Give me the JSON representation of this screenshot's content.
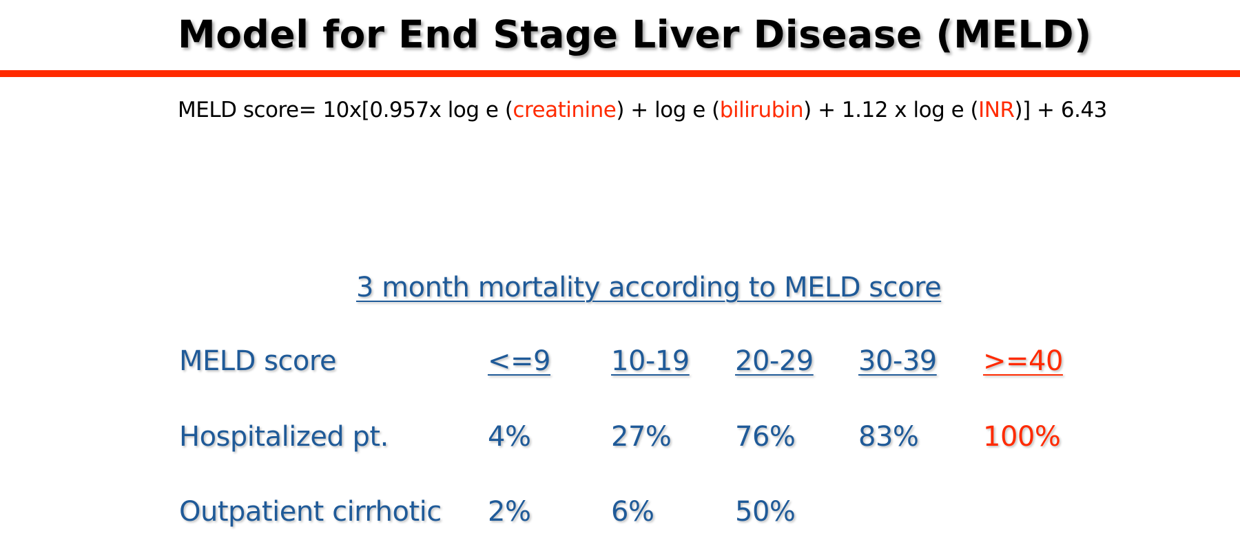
{
  "title": "Model for End Stage Liver Disease (MELD)",
  "formula": {
    "p1": "MELD score= 10x[0.957x log e (",
    "creatinine": "creatinine",
    "p2": ") + log e (",
    "bilirubin": "bilirubin",
    "p3": ") + 1.12 x log e (",
    "inr": "INR",
    "p4": ")] + 6.43"
  },
  "subtitle": "3 month mortality according to MELD score",
  "table": {
    "header": [
      "MELD score",
      "<=9",
      "10-19",
      "20-29",
      "30-39",
      ">=40"
    ],
    "rows": [
      [
        "Hospitalized pt.",
        "4%",
        "27%",
        "76%",
        "83%",
        "100%"
      ],
      [
        "Outpatient cirrhotic",
        "2%",
        "6%",
        "50%",
        "",
        ""
      ]
    ]
  },
  "colors": {
    "accent": "#ff2a00",
    "text_blue": "#1f5a98",
    "text_black": "#000000"
  }
}
